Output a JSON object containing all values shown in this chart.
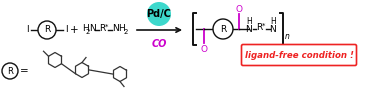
{
  "bg_color": "#ffffff",
  "catalyst_bg": "#3dd8cc",
  "co_text_color": "#cc00cc",
  "carbonyl_color": "#cc00cc",
  "box_color": "#ee2222",
  "ligand_text": "ligand-free condition !",
  "catalyst_label": "Pd/C",
  "co_label": "CO",
  "figsize": [
    3.78,
    0.97
  ],
  "dpi": 100,
  "lw": 1.0,
  "fs": 6.5,
  "fs_small": 5.0
}
